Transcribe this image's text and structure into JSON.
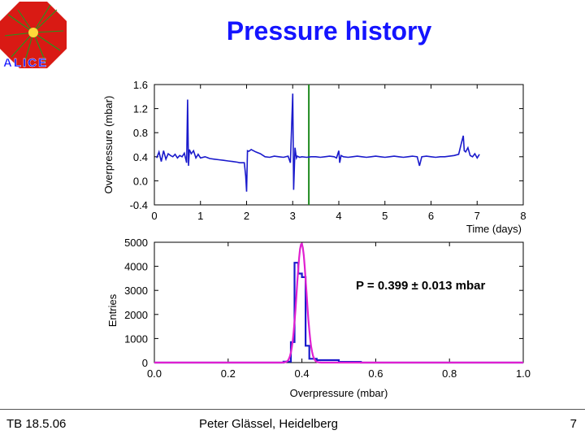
{
  "slide": {
    "title": "Pressure history",
    "footer_left": "TB 18.5.06",
    "footer_center": "Peter Glässel, Heidelberg",
    "footer_right": "7",
    "logo_text": "ALICE"
  },
  "colors": {
    "title": "#1414ff",
    "trace": "#1a1acc",
    "marker_line": "#1f8a1f",
    "fit": "#e020d0",
    "logo_red": "#d91a14",
    "logo_green": "#1e9a1e"
  },
  "chart_data": [
    {
      "type": "line",
      "xlabel": "Time (days)",
      "ylabel": "Overpressure (mbar)",
      "xlim": [
        0,
        8
      ],
      "ylim": [
        -0.4,
        1.6
      ],
      "xticks": [
        0,
        1,
        2,
        3,
        4,
        5,
        6,
        7,
        8
      ],
      "yticks": [
        "-0.4",
        "0.0",
        "0.4",
        "0.8",
        "1.2",
        "1.6"
      ],
      "grid": false,
      "series": [
        {
          "color": "#1a1acc",
          "x": [
            0.05,
            0.1,
            0.15,
            0.2,
            0.25,
            0.3,
            0.35,
            0.4,
            0.45,
            0.5,
            0.55,
            0.6,
            0.65,
            0.7,
            0.72,
            0.74,
            0.76,
            0.8,
            0.85,
            0.9,
            0.95,
            1.0,
            1.1,
            1.2,
            1.3,
            1.4,
            1.5,
            1.6,
            1.7,
            1.8,
            1.85,
            1.9,
            1.95,
            1.98,
            2.0,
            2.02,
            2.05,
            2.1,
            2.15,
            2.2,
            2.3,
            2.4,
            2.5,
            2.6,
            2.7,
            2.8,
            2.9,
            2.95,
            3.0,
            3.02,
            3.05,
            3.08,
            3.1,
            3.15,
            3.2,
            3.3,
            3.4,
            3.5,
            3.6,
            3.7,
            3.8,
            3.9,
            3.95,
            4.0,
            4.02,
            4.05,
            4.1,
            4.2,
            4.3,
            4.4,
            4.5,
            4.6,
            4.7,
            4.8,
            4.9,
            5.0,
            5.1,
            5.2,
            5.3,
            5.4,
            5.5,
            5.6,
            5.7,
            5.75,
            5.8,
            5.9,
            6.0,
            6.1,
            6.2,
            6.3,
            6.4,
            6.5,
            6.6,
            6.65,
            6.7,
            6.72,
            6.75,
            6.8,
            6.85,
            6.9,
            6.95,
            7.0,
            7.05
          ],
          "y": [
            0.38,
            0.48,
            0.32,
            0.5,
            0.36,
            0.45,
            0.42,
            0.4,
            0.44,
            0.38,
            0.42,
            0.4,
            0.46,
            0.3,
            1.35,
            0.25,
            0.52,
            0.45,
            0.5,
            0.38,
            0.44,
            0.38,
            0.4,
            0.37,
            0.36,
            0.35,
            0.34,
            0.33,
            0.32,
            0.31,
            0.3,
            0.3,
            0.3,
            0.08,
            -0.18,
            0.5,
            0.49,
            0.52,
            0.5,
            0.48,
            0.45,
            0.4,
            0.39,
            0.41,
            0.4,
            0.39,
            0.41,
            0.3,
            1.45,
            -0.15,
            0.55,
            0.38,
            0.41,
            0.39,
            0.4,
            0.39,
            0.4,
            0.4,
            0.39,
            0.4,
            0.41,
            0.4,
            0.38,
            0.5,
            0.3,
            0.42,
            0.4,
            0.39,
            0.4,
            0.41,
            0.4,
            0.39,
            0.4,
            0.41,
            0.4,
            0.39,
            0.4,
            0.41,
            0.4,
            0.39,
            0.4,
            0.41,
            0.4,
            0.25,
            0.4,
            0.41,
            0.4,
            0.39,
            0.4,
            0.4,
            0.41,
            0.42,
            0.44,
            0.6,
            0.75,
            0.5,
            0.48,
            0.55,
            0.42,
            0.4,
            0.45,
            0.38,
            0.44
          ]
        }
      ],
      "vline": {
        "x": 3.35,
        "color": "#1f8a1f"
      }
    },
    {
      "type": "histogram",
      "xlabel": "Overpressure (mbar)",
      "ylabel": "Entries",
      "xlim": [
        0.0,
        1.0
      ],
      "ylim": [
        0,
        5000
      ],
      "xticks": [
        "0.0",
        "0.2",
        "0.4",
        "0.6",
        "0.8",
        "1.0"
      ],
      "yticks": [
        "0",
        "1000",
        "2000",
        "3000",
        "4000",
        "5000"
      ],
      "grid": false,
      "annotation": "P = 0.399 ± 0.013 mbar",
      "histogram": {
        "color": "#1a1acc",
        "bin_edges": [
          0.0,
          0.35,
          0.37,
          0.38,
          0.39,
          0.4,
          0.41,
          0.42,
          0.44,
          0.5,
          0.56,
          1.0
        ],
        "counts": [
          0,
          40,
          850,
          4150,
          3700,
          3550,
          700,
          160,
          100,
          30,
          0
        ]
      },
      "fit": {
        "type": "gaussian",
        "color": "#e020d0",
        "mean": 0.399,
        "sigma": 0.013,
        "amplitude": 4950
      }
    }
  ]
}
